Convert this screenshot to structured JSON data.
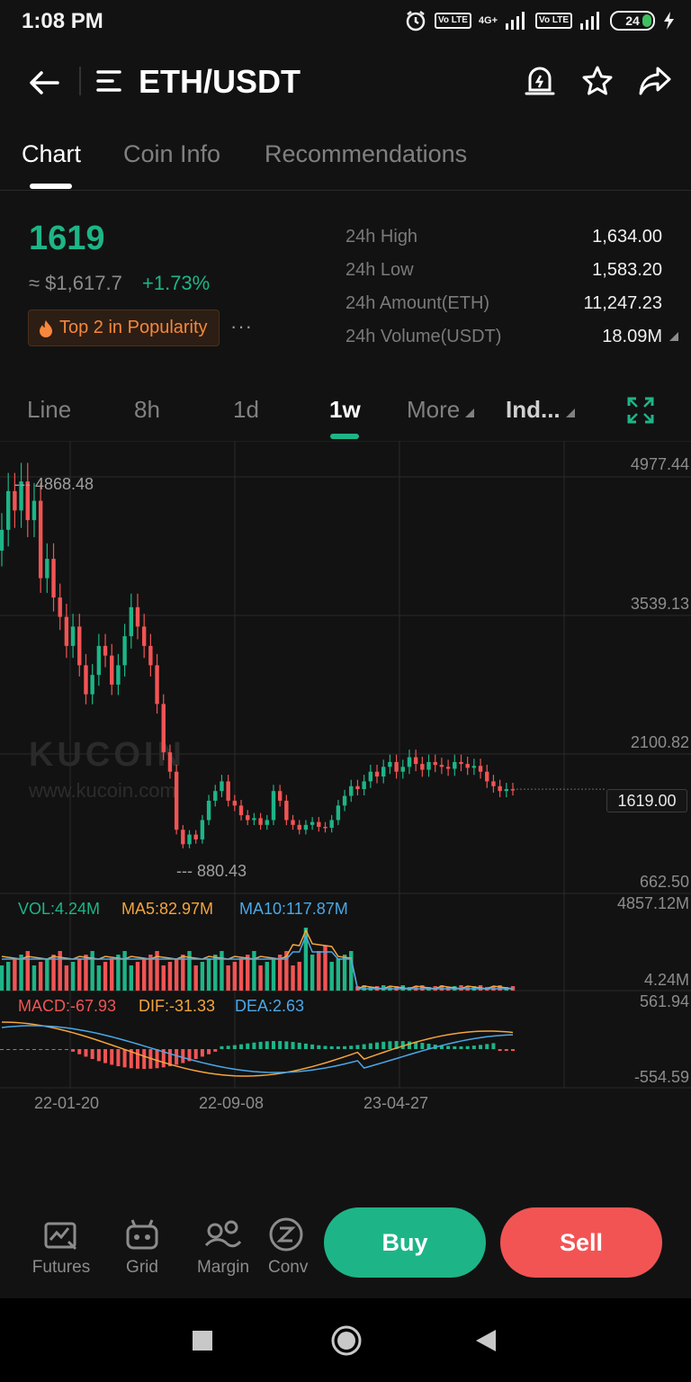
{
  "status_bar": {
    "time": "1:08 PM",
    "network": "4G+",
    "volte_label": "Vo LTE",
    "battery": "24"
  },
  "header": {
    "pair": "ETH/USDT",
    "icons": [
      "back-arrow-icon",
      "menu-icon",
      "price-alert-icon",
      "star-icon",
      "share-icon"
    ]
  },
  "tabs": [
    {
      "label": "Chart",
      "active": true
    },
    {
      "label": "Coin Info",
      "active": false
    },
    {
      "label": "Recommendations",
      "active": false
    }
  ],
  "ticker": {
    "last_price": "1619",
    "usd_price": "≈ $1,617.7",
    "change": "+1.73%",
    "popularity_badge": "Top 2 in Popularity",
    "more": "···"
  },
  "stats": [
    {
      "label": "24h High",
      "value": "1,634.00"
    },
    {
      "label": "24h Low",
      "value": "1,583.20"
    },
    {
      "label": "24h Amount(ETH)",
      "value": "11,247.23"
    },
    {
      "label": "24h Volume(USDT)",
      "value": "18.09M"
    }
  ],
  "intervals": [
    {
      "label": "Line",
      "active": false
    },
    {
      "label": "8h",
      "active": false
    },
    {
      "label": "1d",
      "active": false
    },
    {
      "label": "1w",
      "active": true
    },
    {
      "label": "More",
      "active": false
    },
    {
      "label": "Ind...",
      "active": false
    }
  ],
  "chart_data": {
    "type": "candlestick",
    "interval": "1w",
    "pair": "ETH/USDT",
    "y_axis_ticks": [
      "4977.44",
      "3539.13",
      "2100.82",
      "662.50"
    ],
    "ylim": [
      662.5,
      4977.44
    ],
    "max_marker": "4868.48",
    "min_marker": "880.43",
    "current_price": "1619.00",
    "x_ticks": [
      "22-01-20",
      "22-09-08",
      "23-04-27"
    ],
    "watermark": "KUCOIN",
    "watermark_url": "www.kucoin.com",
    "colors": {
      "up": "#1db587",
      "down": "#f25454"
    },
    "closes": [
      4300,
      4700,
      4500,
      4800,
      4400,
      4600,
      3800,
      4000,
      3600,
      3400,
      3100,
      3300,
      2900,
      2600,
      2800,
      3100,
      3000,
      2700,
      2900,
      3200,
      3500,
      3300,
      3100,
      2900,
      2500,
      2000,
      1800,
      1200,
      1050,
      1150,
      1100,
      1300,
      1500,
      1600,
      1700,
      1500,
      1450,
      1350,
      1300,
      1320,
      1250,
      1300,
      1600,
      1500,
      1300,
      1250,
      1200,
      1250,
      1280,
      1230,
      1220,
      1300,
      1450,
      1550,
      1650,
      1620,
      1700,
      1800,
      1750,
      1850,
      1900,
      1800,
      1850,
      1950,
      1880,
      1820,
      1900,
      1870,
      1850,
      1830,
      1900,
      1880,
      1840,
      1860,
      1800,
      1700,
      1650,
      1600,
      1620,
      1619
    ],
    "volume": {
      "vol": "VOL:4.24M",
      "ma5": "MA5:82.97M",
      "ma10": "MA10:117.87M",
      "top": "4857.12M",
      "bottom": "4.24M"
    },
    "macd": {
      "macd": "MACD:-67.93",
      "dif": "DIF:-31.33",
      "dea": "DEA:2.63",
      "top": "561.94",
      "bottom": "-554.59"
    }
  },
  "bottom_toolbar": [
    {
      "label": "Futures",
      "icon": "futures-chart-icon"
    },
    {
      "label": "Grid",
      "icon": "grid-bot-icon"
    },
    {
      "label": "Margin",
      "icon": "margin-icon"
    },
    {
      "label": "Conv",
      "icon": "convert-icon"
    }
  ],
  "actions": {
    "buy": "Buy",
    "sell": "Sell"
  },
  "colors": {
    "accent": "#1db587",
    "sell": "#f25454",
    "popularity": "#f7873c",
    "background": "#121212"
  }
}
